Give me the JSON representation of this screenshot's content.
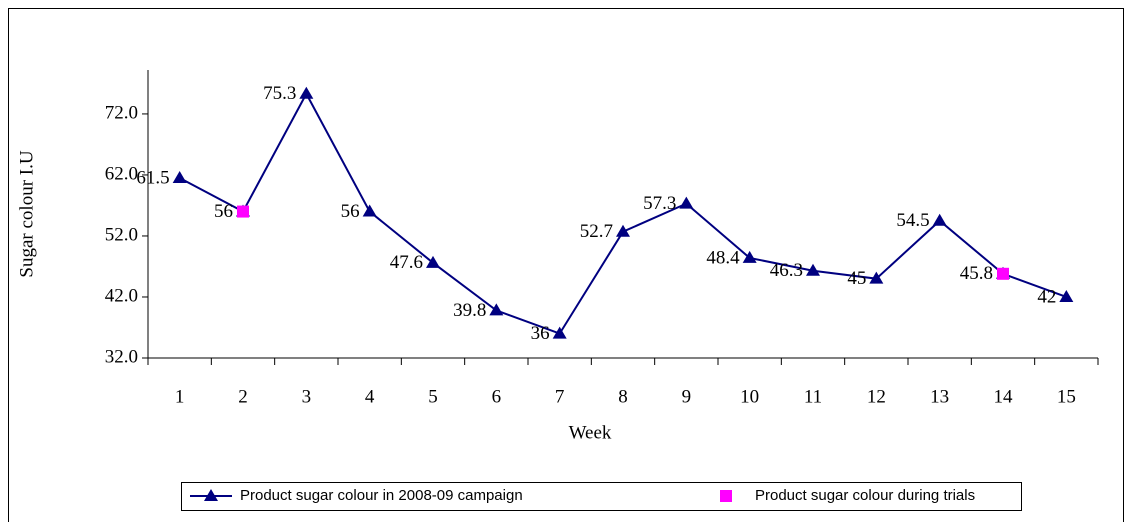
{
  "chart_data": {
    "type": "line",
    "x_label": "Week",
    "y_label": "Sugar colour I.U",
    "categories": [
      "1",
      "2",
      "3",
      "4",
      "5",
      "6",
      "7",
      "8",
      "9",
      "10",
      "11",
      "12",
      "13",
      "14",
      "15"
    ],
    "series": [
      {
        "name": "Product sugar colour in 2008-09 campaign",
        "color": "#000080",
        "marker": "triangle",
        "values": [
          61.5,
          56,
          75.3,
          56,
          47.6,
          39.8,
          36,
          52.7,
          57.3,
          48.4,
          46.3,
          45,
          54.5,
          45.8,
          42
        ]
      },
      {
        "name": "Product sugar colour during trials",
        "color": "#ff00ff",
        "marker": "square",
        "values": [
          null,
          56,
          null,
          null,
          null,
          null,
          null,
          null,
          null,
          null,
          null,
          null,
          null,
          45.8,
          null
        ]
      }
    ],
    "ylim": [
      32,
      79.2
    ],
    "yticks": [
      {
        "value": 32,
        "label": "32.0"
      },
      {
        "value": 42,
        "label": "42.0"
      },
      {
        "value": 52,
        "label": "52.0"
      },
      {
        "value": 62,
        "label": "62.0"
      },
      {
        "value": 72,
        "label": "72.0"
      }
    ],
    "legend": "bottom"
  }
}
